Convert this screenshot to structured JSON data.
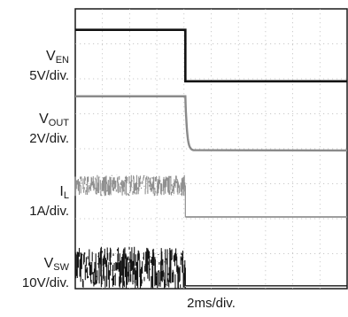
{
  "chart_data": {
    "type": "line",
    "title": "",
    "x_scale": "2ms/div.",
    "x_divisions": 10,
    "y_divisions": 8,
    "x_range": [
      0,
      20
    ],
    "event_time_ms": 8.1,
    "grid": true,
    "series": [
      {
        "name_main": "V",
        "name_sub": "EN",
        "scale": "5V/div.",
        "unit": "div",
        "before_level": 7.4,
        "after_level": 5.93,
        "noise": 0,
        "color": "#111111",
        "width": 2.6,
        "transition": "step"
      },
      {
        "name_main": "V",
        "name_sub": "OUT",
        "scale": "2V/div.",
        "unit": "div",
        "before_level": 5.5,
        "after_level": 3.95,
        "noise": 0,
        "color": "#8a8a8a",
        "width": 2.4,
        "transition": "decay"
      },
      {
        "name_main": "I",
        "name_sub": "L",
        "scale": "1A/div.",
        "unit": "div",
        "before_level": 2.95,
        "after_level": 2.05,
        "noise": 0.3,
        "color": "#909090",
        "width": 1.8,
        "transition": "step"
      },
      {
        "name_main": "V",
        "name_sub": "SW",
        "scale": "10V/div.",
        "unit": "div",
        "before_level": 0.6,
        "after_level": 0.08,
        "noise": 0.6,
        "color": "#151515",
        "width": 1.4,
        "transition": "step"
      }
    ]
  }
}
